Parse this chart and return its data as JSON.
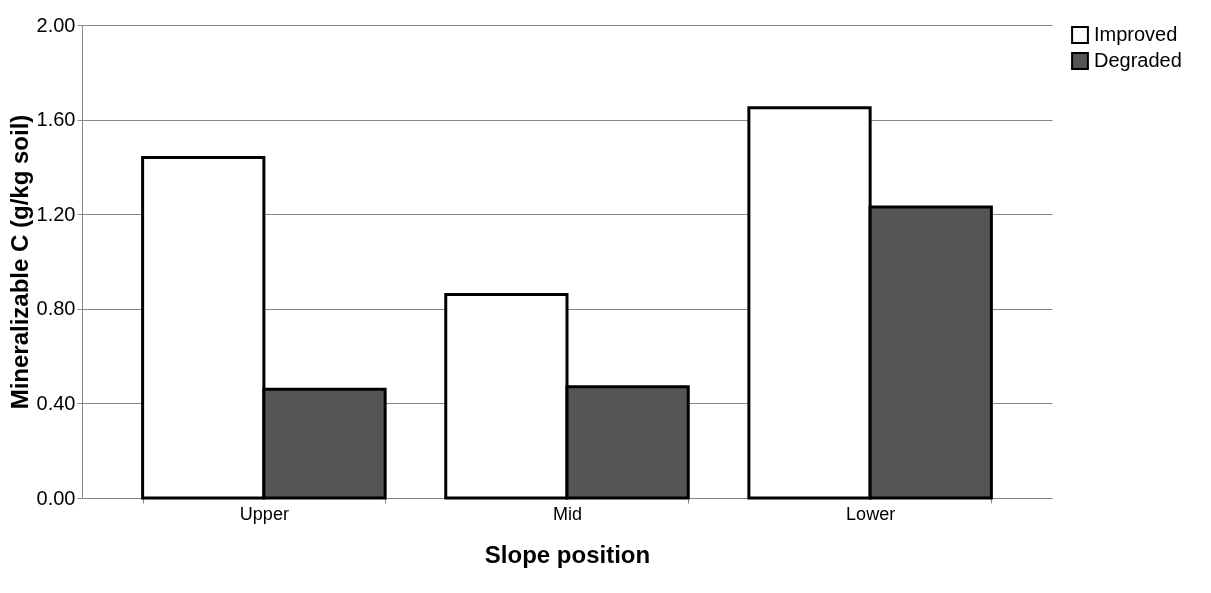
{
  "chart_data": {
    "type": "bar",
    "xlabel": "Slope position",
    "ylabel": "Mineralizable C (g/kg soil)",
    "categories": [
      "Upper",
      "Mid",
      "Lower"
    ],
    "series": [
      {
        "name": "Improved",
        "color": "#ffffff",
        "values": [
          1.44,
          0.86,
          1.65
        ]
      },
      {
        "name": "Degraded",
        "color": "#555555",
        "values": [
          0.46,
          0.47,
          1.23
        ]
      }
    ],
    "ylim": [
      0,
      2.0
    ],
    "yticks": [
      {
        "value": 0,
        "label": "0.00"
      },
      {
        "value": 0.4,
        "label": "0.40"
      },
      {
        "value": 0.8,
        "label": "0.80"
      },
      {
        "value": 1.2,
        "label": "1.20"
      },
      {
        "value": 1.6,
        "label": "1.60"
      },
      {
        "value": 2.0,
        "label": "2.00"
      }
    ],
    "grid": "y",
    "legend": "right"
  }
}
